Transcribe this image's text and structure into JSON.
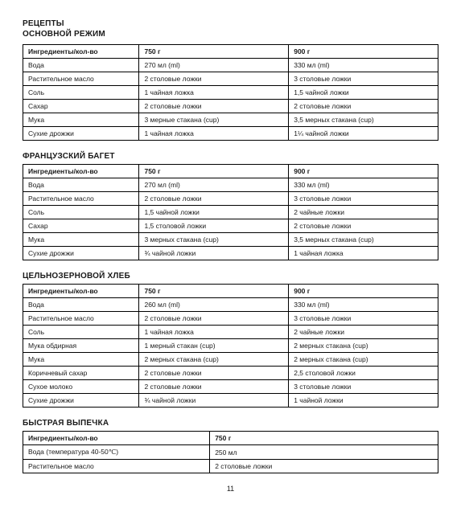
{
  "page_title_line1": "РЕЦЕПТЫ",
  "page_title_line2": "ОСНОВНОЙ РЕЖИМ",
  "page_number": "11",
  "header_ingredients": "Ингредиенты/кол-во",
  "header_750": "750 г",
  "header_900": "900 г",
  "sections": [
    {
      "title": null,
      "type": "cols3",
      "rows": [
        {
          "name": "Вода",
          "v750": "270 мл (ml)",
          "v900": "330 мл (ml)"
        },
        {
          "name": "Растительное масло",
          "v750": "2 столовые ложки",
          "v900": "3 столовые ложки"
        },
        {
          "name": "Соль",
          "v750": "1 чайная ложка",
          "v900": "1,5 чайной ложки"
        },
        {
          "name": "Сахар",
          "v750": "2 столовые ложки",
          "v900": "2 столовые ложки"
        },
        {
          "name": "Мука",
          "v750": "3 мерные стакана (cup)",
          "v900": "3,5 мерных стакана (cup)"
        },
        {
          "name": "Сухие дрожжи",
          "v750": "1 чайная ложка",
          "v900": "1¼ чайной ложки"
        }
      ]
    },
    {
      "title": "ФРАНЦУЗСКИЙ БАГЕТ",
      "type": "cols3",
      "rows": [
        {
          "name": "Вода",
          "v750": "270 мл (ml)",
          "v900": "330 мл (ml)"
        },
        {
          "name": "Растительное масло",
          "v750": "2 столовые ложки",
          "v900": "3 столовые ложки"
        },
        {
          "name": "Соль",
          "v750": "1,5 чайной ложки",
          "v900": "2 чайные ложки"
        },
        {
          "name": "Сахар",
          "v750": "1,5 столовой ложки",
          "v900": "2 столовые ложки"
        },
        {
          "name": "Мука",
          "v750": "3 мерных стакана (cup)",
          "v900": "3,5 мерных стакана (cup)"
        },
        {
          "name": "Сухие дрожжи",
          "v750": "¾ чайной ложки",
          "v900": "1 чайная ложка"
        }
      ]
    },
    {
      "title": "ЦЕЛЬНОЗЕРНОВОЙ ХЛЕБ",
      "type": "cols3",
      "rows": [
        {
          "name": "Вода",
          "v750": "260 мл (ml)",
          "v900": "330 мл (ml)"
        },
        {
          "name": "Растительное масло",
          "v750": "2 столовые ложки",
          "v900": "3 столовые ложки"
        },
        {
          "name": "Соль",
          "v750": "1 чайная ложка",
          "v900": "2 чайные ложки"
        },
        {
          "name": "Мука обдирная",
          "v750": "1 мерный стакан (cup)",
          "v900": "2 мерных стакана (cup)"
        },
        {
          "name": "Мука",
          "v750": "2 мерных стакана (cup)",
          "v900": "2 мерных стакана (cup)"
        },
        {
          "name": "Коричневый сахар",
          "v750": "2 столовые ложки",
          "v900": "2,5 столовой ложки"
        },
        {
          "name": "Сухое молоко",
          "v750": "2 столовые ложки",
          "v900": "3 столовые ложки"
        },
        {
          "name": "Сухие дрожжи",
          "v750": "¾ чайной ложки",
          "v900": "1 чайной ложки"
        }
      ]
    },
    {
      "title": "БЫСТРАЯ ВЫПЕЧКА",
      "type": "cols2",
      "rows": [
        {
          "name": "Вода (температура 40-50℃)",
          "v750": "250 мл"
        },
        {
          "name": "Растительное масло",
          "v750": "2 столовые ложки"
        }
      ]
    }
  ]
}
